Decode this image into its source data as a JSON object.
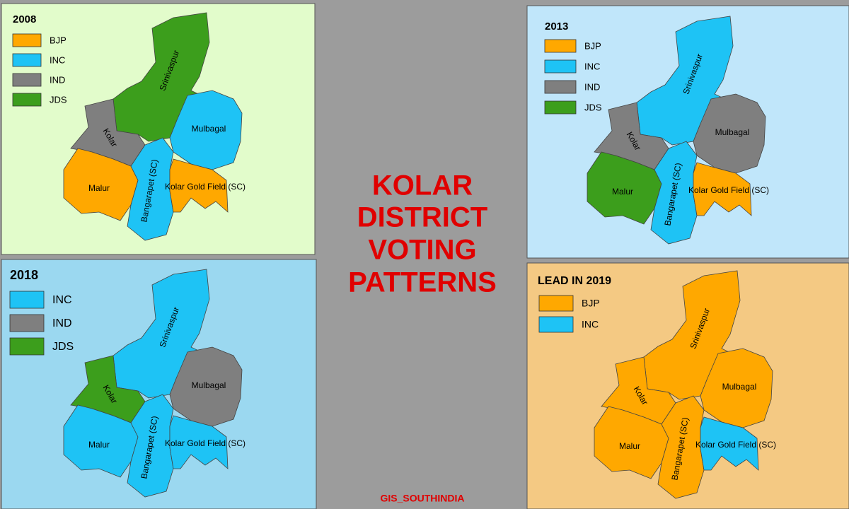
{
  "title_lines": [
    "KOLAR",
    "DISTRICT",
    "VOTING",
    "PATTERNS"
  ],
  "credit": "GIS_SOUTHINDIA",
  "panels": [
    {
      "label": "2008",
      "background": "#e2fccb",
      "legend": [
        {
          "name": "BJP",
          "color": "#ffa800"
        },
        {
          "name": "INC",
          "color": "#1ec3f5"
        },
        {
          "name": "IND",
          "color": "#7f7f7f"
        },
        {
          "name": "JDS",
          "color": "#3c9e1c"
        }
      ],
      "regions": [
        {
          "name": "Srinivaspur",
          "party": "JDS"
        },
        {
          "name": "Kolar",
          "party": "IND"
        },
        {
          "name": "Mulbagal",
          "party": "INC"
        },
        {
          "name": "Malur",
          "party": "BJP"
        },
        {
          "name": "Bangarapet (SC)",
          "party": "INC"
        },
        {
          "name": "Kolar Gold Field (SC)",
          "party": "BJP"
        }
      ]
    },
    {
      "label": "2013",
      "background": "#c0e6fa",
      "legend": [
        {
          "name": "BJP",
          "color": "#ffa800"
        },
        {
          "name": "INC",
          "color": "#1ec3f5"
        },
        {
          "name": "IND",
          "color": "#7f7f7f"
        },
        {
          "name": "JDS",
          "color": "#3c9e1c"
        }
      ],
      "regions": [
        {
          "name": "Srinivaspur",
          "party": "INC"
        },
        {
          "name": "Kolar",
          "party": "IND"
        },
        {
          "name": "Mulbagal",
          "party": "IND"
        },
        {
          "name": "Malur",
          "party": "JDS"
        },
        {
          "name": "Bangarapet (SC)",
          "party": "INC"
        },
        {
          "name": "Kolar Gold Field (SC)",
          "party": "BJP"
        }
      ]
    },
    {
      "label": "2018",
      "background": "#9bd8f0",
      "legend": [
        {
          "name": "INC",
          "color": "#1ec3f5"
        },
        {
          "name": "IND",
          "color": "#7f7f7f"
        },
        {
          "name": "JDS",
          "color": "#3c9e1c"
        }
      ],
      "regions": [
        {
          "name": "Srinivaspur",
          "party": "INC"
        },
        {
          "name": "Kolar",
          "party": "JDS"
        },
        {
          "name": "Mulbagal",
          "party": "IND"
        },
        {
          "name": "Malur",
          "party": "INC"
        },
        {
          "name": "Bangarapet (SC)",
          "party": "INC"
        },
        {
          "name": "Kolar Gold Field (SC)",
          "party": "INC"
        }
      ]
    },
    {
      "label": "LEAD IN 2019",
      "background": "#f4c983",
      "legend": [
        {
          "name": "BJP",
          "color": "#ffa800"
        },
        {
          "name": "INC",
          "color": "#1ec3f5"
        }
      ],
      "regions": [
        {
          "name": "Srinivaspur",
          "party": "BJP"
        },
        {
          "name": "Kolar",
          "party": "BJP"
        },
        {
          "name": "Mulbagal",
          "party": "BJP"
        },
        {
          "name": "Malur",
          "party": "BJP"
        },
        {
          "name": "Bangarapet (SC)",
          "party": "BJP"
        },
        {
          "name": "Kolar Gold Field (SC)",
          "party": "INC"
        }
      ]
    }
  ]
}
